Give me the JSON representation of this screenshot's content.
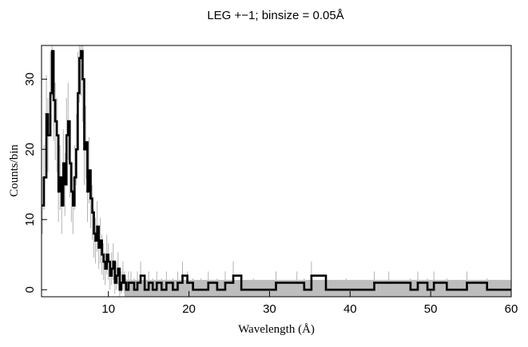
{
  "chart_data": {
    "type": "line",
    "title": "LEG +−1; binsize = 0.05Å",
    "xlabel": "Wavelength (Å)",
    "ylabel": "Counts/bin",
    "xlim": [
      1.7,
      60
    ],
    "ylim": [
      -1,
      34.8
    ],
    "xticks": [
      10,
      20,
      30,
      40,
      50,
      60
    ],
    "yticks": [
      0,
      10,
      20,
      30
    ],
    "grid": false,
    "legend": "none",
    "band": {
      "y_low": -1,
      "y_high": 1.4,
      "x_start": 12.0,
      "x_end": 60
    },
    "colors": {
      "data": "#000000",
      "errorbars": "#b3b3b3",
      "band": "#bdbdbd"
    },
    "series": [
      {
        "x": [
          1.8,
          2.0,
          2.3,
          2.5,
          2.8,
          3.0,
          3.2,
          3.4,
          3.6,
          3.8,
          4.0,
          4.2,
          4.4,
          4.6,
          4.8,
          5.0,
          5.2,
          5.4,
          5.6,
          5.8,
          6.0,
          6.2,
          6.4,
          6.6,
          6.8,
          7.0,
          7.2,
          7.4,
          7.6,
          7.8,
          8.0,
          8.2,
          8.4,
          8.6,
          8.8,
          9.0,
          9.2,
          9.4,
          9.6,
          9.8,
          10.0,
          10.2,
          10.4,
          10.6,
          10.8,
          11.0,
          11.2,
          11.4,
          11.6,
          11.8,
          12.0,
          12.2,
          12.5,
          12.8,
          13.2,
          13.6,
          14.0,
          14.5,
          15.0,
          15.5,
          16.0,
          16.6,
          17.2,
          18.0,
          18.6,
          19.2,
          19.8,
          20.5,
          21.5,
          22.4,
          23.5,
          24.5,
          25.5,
          26.5,
          28.0,
          30.8,
          33.4,
          34.3,
          35.2,
          37.0,
          39.5,
          43.0,
          44.8,
          47.5,
          48.4,
          49.6,
          50.4,
          52.0,
          54.5,
          57.0,
          60.0
        ],
        "y": [
          12,
          16,
          25,
          22,
          28,
          34,
          27,
          24,
          22,
          14,
          16,
          12,
          18,
          15,
          22,
          24,
          18,
          14,
          12,
          16,
          20,
          28,
          33,
          34,
          30,
          20,
          21,
          14,
          17,
          13,
          11,
          8,
          7,
          9,
          6,
          7,
          5,
          4,
          3,
          5,
          4,
          2,
          3,
          4,
          1,
          2,
          3,
          0,
          1,
          2,
          1,
          0,
          1,
          1,
          0,
          1,
          2,
          0,
          1,
          0,
          1,
          0,
          1,
          0,
          1,
          2,
          1,
          0,
          0,
          1,
          0,
          1,
          2,
          0,
          0,
          1,
          1,
          0,
          2,
          0,
          0,
          1,
          1,
          0,
          1,
          0,
          1,
          0,
          1,
          0,
          0
        ]
      }
    ]
  }
}
